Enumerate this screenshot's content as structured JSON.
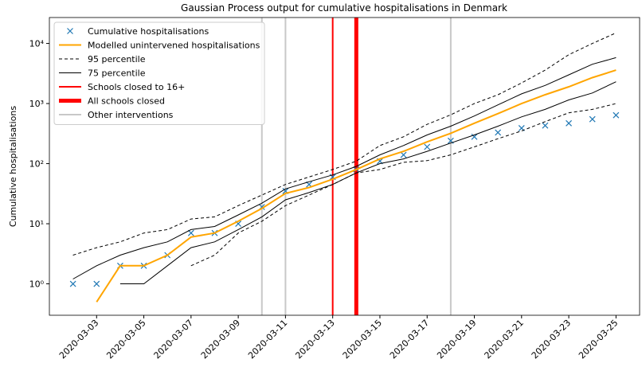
{
  "chart_data": {
    "type": "line",
    "title": "Gaussian Process output for cumulative hospitalisations in Denmark",
    "ylabel": "Cumulative hospitalisations",
    "yscale": "log",
    "legend": "upper left",
    "x": [
      "2020-03-02",
      "2020-03-03",
      "2020-03-04",
      "2020-03-05",
      "2020-03-06",
      "2020-03-07",
      "2020-03-08",
      "2020-03-09",
      "2020-03-10",
      "2020-03-11",
      "2020-03-12",
      "2020-03-13",
      "2020-03-14",
      "2020-03-15",
      "2020-03-16",
      "2020-03-17",
      "2020-03-18",
      "2020-03-19",
      "2020-03-20",
      "2020-03-21",
      "2020-03-22",
      "2020-03-23",
      "2020-03-24",
      "2020-03-25"
    ],
    "xlim": [
      "2020-03-01",
      "2020-03-26"
    ],
    "xticks": [
      "2020-03-03",
      "2020-03-05",
      "2020-03-07",
      "2020-03-09",
      "2020-03-11",
      "2020-03-13",
      "2020-03-15",
      "2020-03-17",
      "2020-03-19",
      "2020-03-21",
      "2020-03-23",
      "2020-03-25"
    ],
    "ylim": [
      0.3,
      27000
    ],
    "yticks": [
      {
        "value": 1,
        "label": "10⁰"
      },
      {
        "value": 10,
        "label": "10¹"
      },
      {
        "value": 100,
        "label": "10²"
      },
      {
        "value": 1000,
        "label": "10³"
      },
      {
        "value": 10000,
        "label": "10⁴"
      }
    ],
    "series": [
      {
        "name": "Cumulative hospitalisations",
        "color": "#1f77b4",
        "marker": "x",
        "values": [
          1,
          1,
          2,
          2,
          3,
          7,
          7,
          10,
          19,
          35,
          45,
          60,
          80,
          110,
          140,
          190,
          240,
          280,
          330,
          390,
          430,
          470,
          550,
          640
        ]
      },
      {
        "name": "Modelled unintervened hospitalisations",
        "color": "#ffa500",
        "width": 2,
        "values": [
          null,
          0.5,
          2,
          2,
          3,
          6,
          7,
          11,
          18,
          32,
          40,
          55,
          80,
          120,
          160,
          230,
          320,
          470,
          680,
          1000,
          1400,
          1900,
          2700,
          3600
        ]
      },
      {
        "name": "95 percentile",
        "color": "#000000",
        "width": 1,
        "dash": true,
        "values": [
          3,
          4,
          5,
          7,
          8,
          12,
          13,
          20,
          30,
          45,
          60,
          80,
          110,
          200,
          280,
          450,
          650,
          1000,
          1400,
          2200,
          3600,
          6500,
          10000,
          15000
        ],
        "values_lower": [
          null,
          null,
          null,
          null,
          null,
          2,
          3,
          7,
          11,
          20,
          30,
          45,
          70,
          80,
          105,
          112,
          140,
          190,
          260,
          350,
          500,
          700,
          800,
          1000
        ]
      },
      {
        "name": "75 percentile",
        "color": "#000000",
        "width": 1,
        "values": [
          1.2,
          2,
          3,
          4,
          5,
          8,
          9,
          14,
          22,
          38,
          50,
          65,
          90,
          140,
          200,
          300,
          420,
          620,
          950,
          1450,
          2000,
          3000,
          4500,
          5800
        ],
        "values_lower": [
          null,
          null,
          1,
          1,
          2,
          4,
          5,
          8,
          13,
          25,
          33,
          45,
          70,
          100,
          120,
          160,
          220,
          300,
          420,
          600,
          800,
          1150,
          1500,
          2300
        ]
      }
    ],
    "vlines": [
      {
        "name": "Schools closed to 16+",
        "color": "#ff0000",
        "width": 2,
        "x": [
          "2020-03-13"
        ]
      },
      {
        "name": "All schools closed",
        "color": "#ff0000",
        "width": 5,
        "x": [
          "2020-03-14"
        ]
      },
      {
        "name": "Other interventions",
        "color": "#c8c8c8",
        "width": 2,
        "x": [
          "2020-03-10",
          "2020-03-11",
          "2020-03-18"
        ]
      }
    ]
  }
}
